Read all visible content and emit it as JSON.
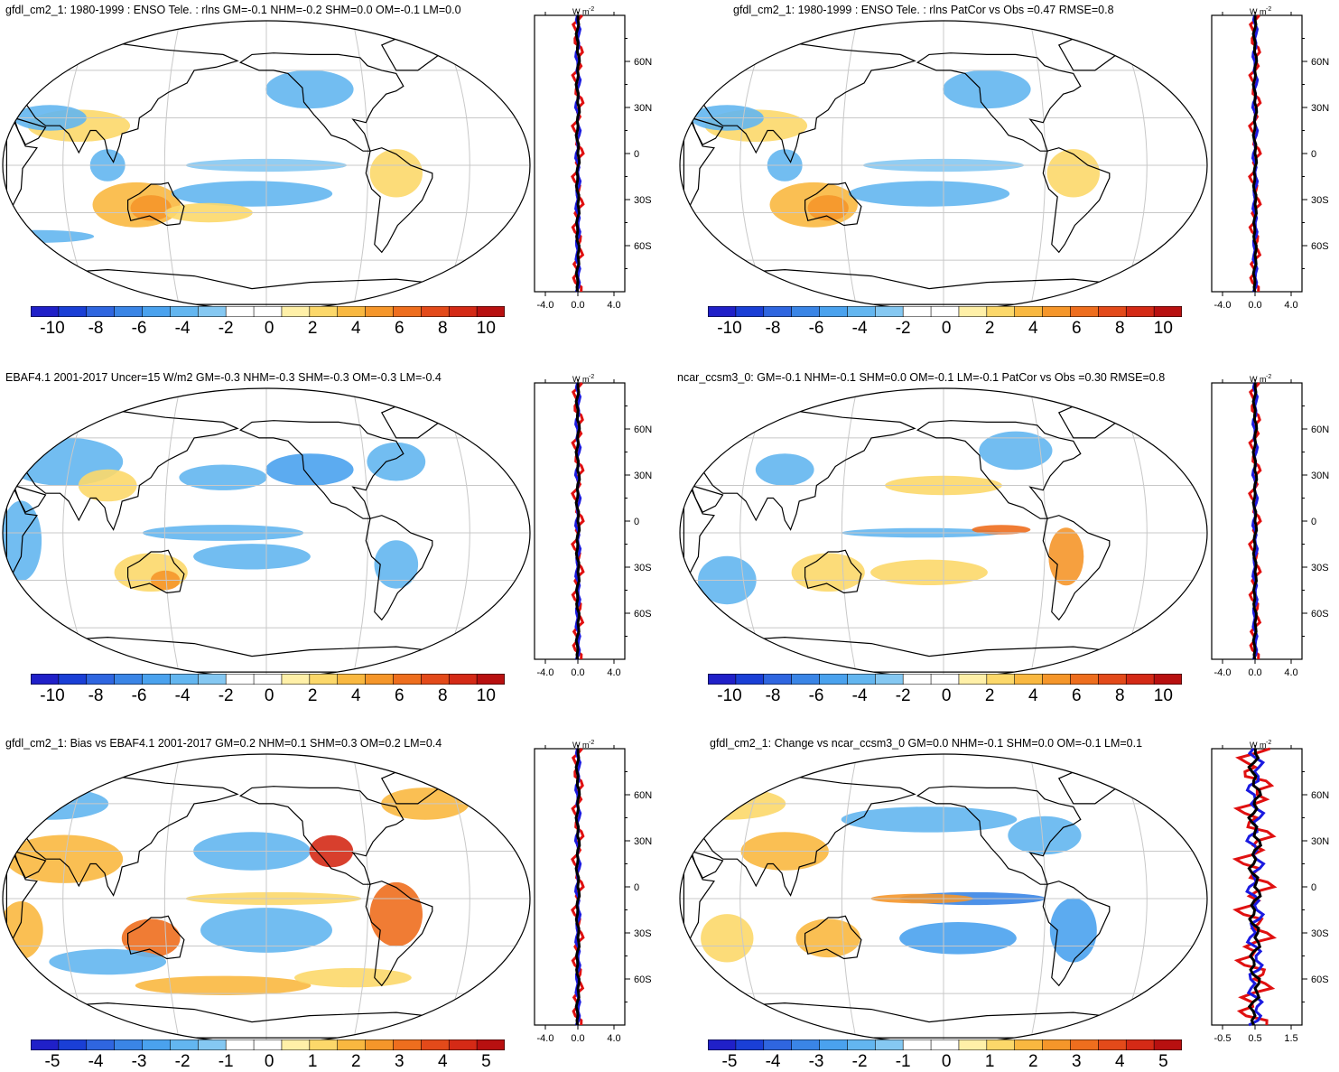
{
  "colors": {
    "scale": [
      "#2020c8",
      "#1a3fd6",
      "#2f66e0",
      "#3a85e6",
      "#4aa2ee",
      "#63b6f0",
      "#85c8f2",
      "#ffffff",
      "#ffffff",
      "#fff0a8",
      "#fcd86a",
      "#f9b840",
      "#f5962a",
      "#ee6e1e",
      "#e34a1a",
      "#d42a16",
      "#b81010"
    ],
    "outline": "#000000",
    "grid": "#c8c8c8",
    "model": "#e01010",
    "obs": "#1a1ae0",
    "combined": "#000000"
  },
  "lat_labels": [
    "60N",
    "30N",
    "0",
    "30S",
    "60S"
  ],
  "unit_label": "W m",
  "unit_sup": "-2",
  "panels": [
    {
      "id": "p1",
      "title": "gfdl_cm2_1: 1980-1999 : ENSO Tele. : rlns GM=-0.1 NHM=-0.2 SHM=0.0 OM=-0.1 LM=0.0",
      "colorbar_labels": [
        "-10",
        "-8",
        "-6",
        "-4",
        "-2",
        "0",
        "2",
        "4",
        "6",
        "8",
        "10"
      ],
      "profile_ticks": [
        "-4.0",
        "0.0",
        "4.0"
      ]
    },
    {
      "id": "p2",
      "title": "gfdl_cm2_1: 1980-1999 : ENSO Tele. : rlns PatCor vs Obs =0.47 RMSE=0.8",
      "colorbar_labels": [
        "-10",
        "-8",
        "-6",
        "-4",
        "-2",
        "0",
        "2",
        "4",
        "6",
        "8",
        "10"
      ],
      "profile_ticks": [
        "-4.0",
        "0.0",
        "4.0"
      ]
    },
    {
      "id": "p3",
      "title": "EBAF4.1 2001-2017 Uncer=15 W/m2 GM=-0.3 NHM=-0.3 SHM=-0.3 OM=-0.3 LM=-0.4",
      "colorbar_labels": [
        "-10",
        "-8",
        "-6",
        "-4",
        "-2",
        "0",
        "2",
        "4",
        "6",
        "8",
        "10"
      ],
      "profile_ticks": [
        "-4.0",
        "0.0",
        "4.0"
      ]
    },
    {
      "id": "p4",
      "title": "ncar_ccsm3_0: GM=-0.1 NHM=-0.1 SHM=0.0 OM=-0.1 LM=-0.1 PatCor vs Obs =0.30 RMSE=0.8",
      "colorbar_labels": [
        "-10",
        "-8",
        "-6",
        "-4",
        "-2",
        "0",
        "2",
        "4",
        "6",
        "8",
        "10"
      ],
      "profile_ticks": [
        "-4.0",
        "0.0",
        "4.0"
      ]
    },
    {
      "id": "p5",
      "title": "gfdl_cm2_1: Bias vs EBAF4.1 2001-2017 GM=0.2 NHM=0.1 SHM=0.3 OM=0.2 LM=0.4",
      "colorbar_labels": [
        "-5",
        "-4",
        "-3",
        "-2",
        "-1",
        "0",
        "1",
        "2",
        "3",
        "4",
        "5"
      ],
      "profile_ticks": [
        "-4.0",
        "0.0",
        "4.0"
      ]
    },
    {
      "id": "p6",
      "title": "gfdl_cm2_1: Change vs ncar_ccsm3_0 GM=0.0 NHM=-0.1 SHM=0.0 OM=-0.1 LM=0.1",
      "colorbar_labels": [
        "-5",
        "-4",
        "-3",
        "-2",
        "-1",
        "0",
        "1",
        "2",
        "3",
        "4",
        "5"
      ],
      "profile_ticks": [
        "-0.5",
        "0.5",
        "1.5"
      ]
    }
  ]
}
